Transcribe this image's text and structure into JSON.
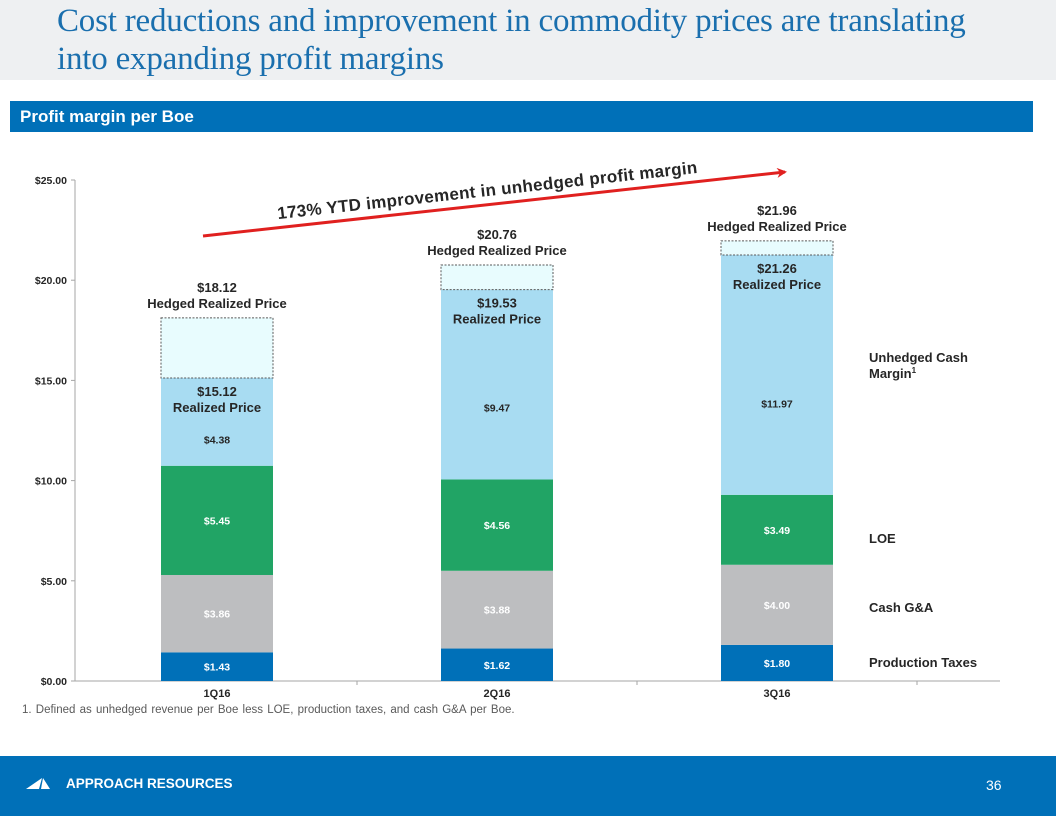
{
  "header": {
    "title": "Cost reductions and improvement in commodity prices are translating into expanding profit margins"
  },
  "section": {
    "label": "Profit margin per Boe"
  },
  "chart_data": {
    "type": "bar",
    "stacked": true,
    "title": "Profit margin per Boe",
    "xlabel": "",
    "ylabel": "",
    "ylim": [
      0,
      25
    ],
    "yticks": [
      0,
      5,
      10,
      15,
      20,
      25
    ],
    "ytick_labels": [
      "$0.00",
      "$5.00",
      "$10.00",
      "$15.00",
      "$20.00",
      "$25.00"
    ],
    "grid": false,
    "categories": [
      "1Q16",
      "2Q16",
      "3Q16"
    ],
    "series": [
      {
        "name": "Production Taxes",
        "color": "#0070b8",
        "label_color": "#ffffff",
        "values": [
          1.43,
          1.62,
          1.8
        ],
        "labels": [
          "$1.43",
          "$1.62",
          "$1.80"
        ]
      },
      {
        "name": "Cash G&A",
        "color": "#bdbec0",
        "label_color": "#ffffff",
        "values": [
          3.86,
          3.88,
          4.0
        ],
        "labels": [
          "$3.86",
          "$3.88",
          "$4.00"
        ]
      },
      {
        "name": "LOE",
        "color": "#21a465",
        "label_color": "#ffffff",
        "values": [
          5.45,
          4.56,
          3.49
        ],
        "labels": [
          "$5.45",
          "$4.56",
          "$3.49"
        ]
      },
      {
        "name": "Unhedged Cash Margin",
        "superscript": "1",
        "color": "#a8dcf2",
        "label_color": "#262626",
        "values": [
          4.38,
          9.47,
          11.97
        ],
        "labels": [
          "$4.38",
          "$9.47",
          "$11.97"
        ]
      }
    ],
    "legend": {
      "placement": "right",
      "entries": [
        "Unhedged Cash Margin",
        "LOE",
        "Cash G&A",
        "Production Taxes"
      ]
    },
    "realized_price": {
      "values": [
        15.12,
        19.53,
        21.26
      ],
      "labels": [
        "$15.12",
        "$19.53",
        "$21.26"
      ],
      "caption": "Realized  Price"
    },
    "hedged_realized_price": {
      "values": [
        18.12,
        20.76,
        21.96
      ],
      "labels": [
        "$18.12",
        "$20.76",
        "$21.96"
      ],
      "caption": "Hedged Realized  Price",
      "fill_color": "#e8fcfe"
    },
    "annotation": {
      "text": "173% YTD improvement in unhedged profit margin",
      "arrow_color": "#e0201f",
      "direction": "up-right"
    }
  },
  "footnote": "1. Defined as unhedged revenue per Boe less LOE, production taxes, and cash G&A per Boe.",
  "footer": {
    "brand": "APPROACH RESOURCES",
    "page_number": "36",
    "logo_icon": "approach-logo-icon"
  }
}
